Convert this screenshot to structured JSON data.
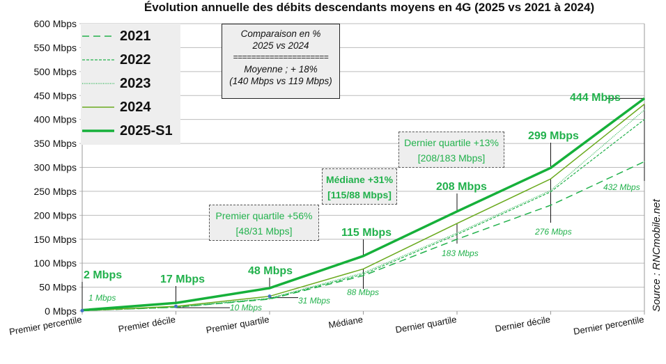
{
  "chart_data": {
    "type": "line",
    "title": "Évolution annuelle des débits descendants moyens en 4G (2025 vs 2021 à 2024)",
    "categories": [
      "Premier percentile",
      "Premier décile",
      "Premier quartile",
      "Médiane",
      "Dernier quartile",
      "Dernier décile",
      "Dernier percentile"
    ],
    "ylim": [
      0,
      600
    ],
    "yticks": [
      "0 Mbps",
      "50 Mbps",
      "100 Mbps",
      "150 Mbps",
      "200 Mbps",
      "250 Mbps",
      "300 Mbps",
      "350 Mbps",
      "400 Mbps",
      "450 Mbps",
      "500 Mbps",
      "550 Mbps",
      "600 Mbps"
    ],
    "grid": true,
    "legend_position": "top-left",
    "series": [
      {
        "name": "2021",
        "values": [
          1,
          8,
          25,
          74,
          150,
          221,
          312
        ],
        "color": "#22b14c",
        "style": "dash"
      },
      {
        "name": "2022",
        "values": [
          1,
          8,
          26,
          77,
          160,
          249,
          400
        ],
        "color": "#22b14c",
        "style": "shortdash"
      },
      {
        "name": "2023",
        "values": [
          1,
          9,
          27,
          80,
          163,
          252,
          420
        ],
        "color": "#22b14c",
        "style": "dot"
      },
      {
        "name": "2024",
        "values": [
          1,
          10,
          31,
          88,
          183,
          276,
          432
        ],
        "color": "#6aaa1e",
        "style": "thin"
      },
      {
        "name": "2025-S1",
        "values": [
          2,
          17,
          48,
          115,
          208,
          299,
          444
        ],
        "color": "#16b03a",
        "style": "thick"
      }
    ],
    "labels_2025": [
      "2 Mbps",
      "17 Mbps",
      "48 Mbps",
      "115 Mbps",
      "208 Mbps",
      "299 Mbps",
      "444 Mbps"
    ],
    "labels_2024": [
      "1 Mbps",
      "10 Mbps",
      "31 Mbps",
      "88 Mbps",
      "183 Mbps",
      "276 Mbps",
      "432 Mbps"
    ],
    "comparison": {
      "l1": "Comparaison en %",
      "l2": "2025 vs 2024",
      "sep": "=====================",
      "l3": "Moyenne ; + 18%",
      "l4": "(140 Mbps vs 119 Mbps)"
    },
    "annotations": [
      {
        "l1": "Premier quartile +56%",
        "l2": "[48/31 Mbps]"
      },
      {
        "l1": "Médiane +31%",
        "l2": "[115/88 Mbps]"
      },
      {
        "l1": "Dernier quartile +13%",
        "l2": "[208/183 Mbps]"
      }
    ],
    "source": "Source : RNCmobile.net"
  }
}
